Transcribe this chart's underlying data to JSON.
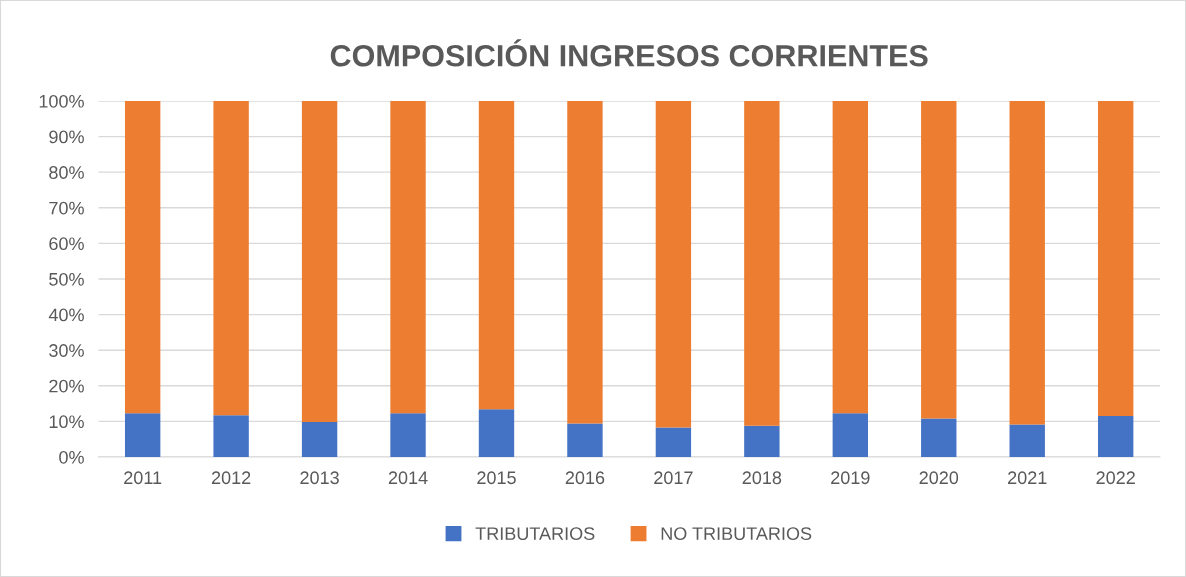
{
  "chart_data": {
    "type": "bar",
    "title": "COMPOSICIÓN INGRESOS CORRIENTES",
    "stacked": true,
    "categories": [
      "2011",
      "2012",
      "2013",
      "2014",
      "2015",
      "2016",
      "2017",
      "2018",
      "2019",
      "2020",
      "2021",
      "2022"
    ],
    "series": [
      {
        "name": "TRIBUTARIOS",
        "color": "#4472c4",
        "values": [
          12.3,
          11.7,
          9.8,
          12.3,
          13.4,
          9.4,
          8.3,
          8.8,
          12.3,
          10.8,
          9.1,
          11.5
        ]
      },
      {
        "name": "NO TRIBUTARIOS",
        "color": "#ed7d31",
        "values": [
          87.7,
          88.3,
          90.2,
          87.7,
          86.6,
          90.6,
          91.7,
          91.2,
          87.7,
          89.2,
          90.9,
          88.5
        ]
      }
    ],
    "ylim": [
      0,
      100
    ],
    "yticks": [
      {
        "value": 0,
        "label": "0%"
      },
      {
        "value": 10,
        "label": "10%"
      },
      {
        "value": 20,
        "label": "20%"
      },
      {
        "value": 30,
        "label": "30%"
      },
      {
        "value": 40,
        "label": "40%"
      },
      {
        "value": 50,
        "label": "50%"
      },
      {
        "value": 60,
        "label": "60%"
      },
      {
        "value": 70,
        "label": "70%"
      },
      {
        "value": 80,
        "label": "80%"
      },
      {
        "value": 90,
        "label": "90%"
      },
      {
        "value": 100,
        "label": "100%"
      }
    ],
    "grid": "y",
    "legend": "bottom"
  }
}
